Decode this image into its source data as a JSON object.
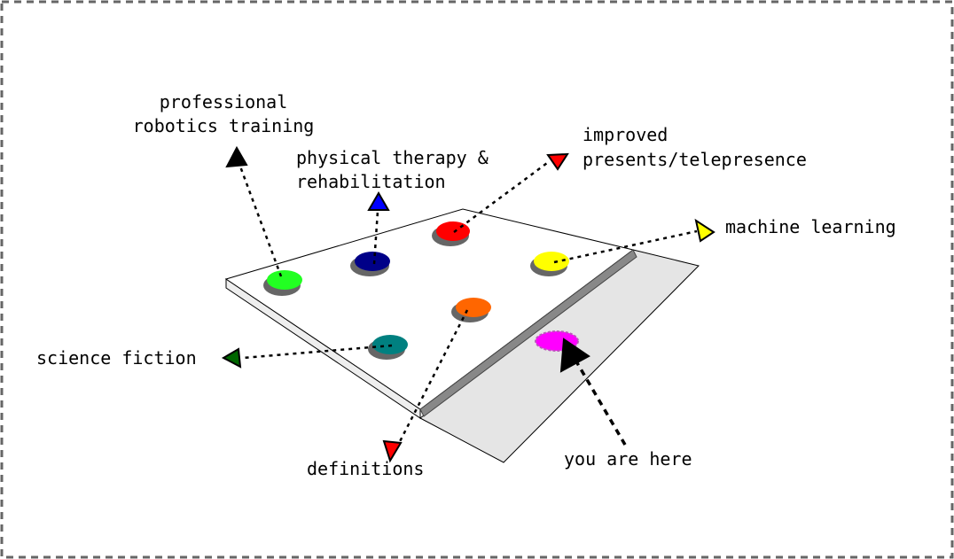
{
  "labels": {
    "professional_robotics_training": [
      "professional",
      "robotics training"
    ],
    "physical_therapy": [
      "physical therapy &",
      "rehabilitation"
    ],
    "improved_presence": [
      "improved",
      "presents/telepresence"
    ],
    "machine_learning": [
      "machine learning"
    ],
    "science_fiction": [
      "science fiction"
    ],
    "definitions": [
      "definitions"
    ],
    "you_are_here": [
      "you are here"
    ]
  },
  "colors": {
    "border": "#666666",
    "table_top": "#ffffff",
    "table_edge": "#eeeeee",
    "floor_shadow": "#e5e5e5",
    "rail": "#888888",
    "robot_base": "#666666",
    "robot_green": "#22ff22",
    "robot_navy": "#000088",
    "robot_red": "#ff0000",
    "robot_yellow": "#ffff00",
    "robot_orange": "#ff6600",
    "robot_teal": "#008080",
    "robot_magenta": "#ff00ff",
    "arrow_black": "#000000",
    "arrow_blue": "#0000ff",
    "arrow_red": "#ff0000",
    "arrow_yellow": "#ffff00",
    "arrow_green": "#006600"
  },
  "icons": {
    "robot": "robot-icon",
    "arrow": "triangle-arrow-icon"
  }
}
